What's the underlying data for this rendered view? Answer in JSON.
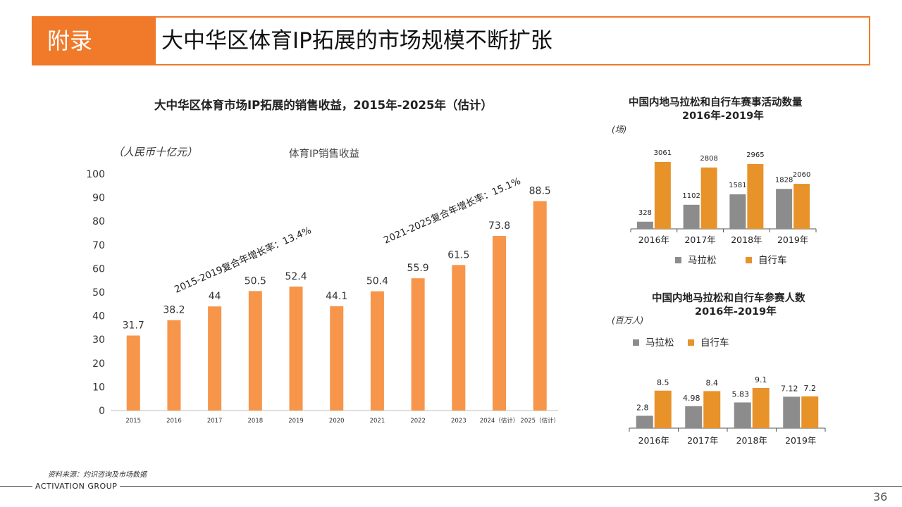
{
  "header": {
    "tag": "附录",
    "title": "大中华区体育IP拓展的市场规模不断扩张"
  },
  "main_chart": {
    "title": "大中华区体育市场IP拓展的销售收益，2015年-2025年（估计）",
    "unit": "（人民币十亿元）",
    "legend_label": "体育IP销售收益",
    "cagr1": "2015-2019复合年增长率：13.4%",
    "cagr2": "2021-2025复合年增长率：15.1%"
  },
  "events_chart": {
    "title_line1": "中国内地马拉松和自行车赛事活动数量",
    "title_line2": "2016年-2019年",
    "unit": "(场)"
  },
  "participants_chart": {
    "title_line1": "中国内地马拉松和自行车参赛人数",
    "title_line2": "2016年-2019年",
    "unit": "(百万人)"
  },
  "footer": {
    "source": "资料来源：灼识咨询及市场数据",
    "brand": "ACTIVATION GROUP",
    "page_number": "36"
  },
  "colors": {
    "orange": "#F7954A",
    "orange_dark": "#E8922A",
    "gray": "#8C8C8C",
    "accent": "#F07A2A"
  },
  "chart_data": [
    {
      "type": "bar",
      "title": "大中华区体育市场IP拓展的销售收益，2015年-2025年（估计）",
      "categories": [
        "2015",
        "2016",
        "2017",
        "2018",
        "2019",
        "2020",
        "2021",
        "2022",
        "2023",
        "2024（估计）",
        "2025（估计）"
      ],
      "series": [
        {
          "name": "体育IP销售收益",
          "values": [
            31.7,
            38.2,
            44,
            50.5,
            52.4,
            44.1,
            50.4,
            55.9,
            61.5,
            73.8,
            88.5
          ]
        }
      ],
      "ylabel": "（人民币十亿元）",
      "ylim": [
        0,
        100
      ],
      "yticks": [
        0,
        10,
        20,
        30,
        40,
        50,
        60,
        70,
        80,
        90,
        100
      ],
      "annotations": [
        "2015-2019复合年增长率：13.4%",
        "2021-2025复合年增长率：15.1%"
      ]
    },
    {
      "type": "bar",
      "title": "中国内地马拉松和自行车赛事活动数量 2016年-2019年",
      "categories": [
        "2016年",
        "2017年",
        "2018年",
        "2019年"
      ],
      "series": [
        {
          "name": "马拉松",
          "values": [
            328,
            1102,
            1581,
            1828
          ]
        },
        {
          "name": "自行车",
          "values": [
            3061,
            2808,
            2965,
            2060
          ]
        }
      ],
      "ylabel": "(场)",
      "ylim": [
        0,
        3061
      ],
      "legend": "bottom"
    },
    {
      "type": "bar",
      "title": "中国内地马拉松和自行车参赛人数 2016年-2019年",
      "categories": [
        "2016年",
        "2017年",
        "2018年",
        "2019年"
      ],
      "series": [
        {
          "name": "马拉松",
          "values": [
            2.8,
            4.98,
            5.83,
            7.12
          ]
        },
        {
          "name": "自行车",
          "values": [
            8.5,
            8.4,
            9.1,
            7.2
          ]
        }
      ],
      "ylabel": "(百万人)",
      "ylim": [
        0,
        9.1
      ],
      "legend": "top"
    }
  ]
}
